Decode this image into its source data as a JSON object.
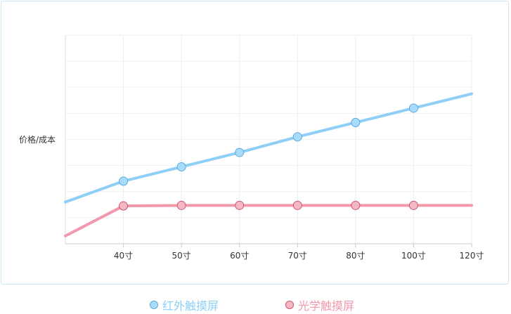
{
  "chart_data": {
    "type": "line",
    "ylabel": "价格/成本",
    "xlabel": "",
    "categories": [
      "",
      "40寸",
      "50寸",
      "60寸",
      "70寸",
      "80寸",
      "100寸",
      "120寸"
    ],
    "x_ticks": [
      "40寸",
      "50寸",
      "60寸",
      "70寸",
      "80寸",
      "100寸",
      "120寸"
    ],
    "ylim": [
      0,
      8
    ],
    "grid": true,
    "legend_position": "bottom",
    "series": [
      {
        "name": "红外触摸屏",
        "color": "#8ecff7",
        "marker_fill": "#a9dcfb",
        "marker_stroke": "#5aa9dc",
        "values": [
          1.6,
          2.4,
          2.95,
          3.5,
          4.1,
          4.65,
          5.2,
          5.75
        ],
        "markers": [
          false,
          true,
          true,
          true,
          true,
          true,
          true,
          false
        ]
      },
      {
        "name": "光学触摸屏",
        "color": "#f199aa",
        "marker_fill": "#f5b8c3",
        "marker_stroke": "#c9546b",
        "values": [
          0.3,
          1.45,
          1.47,
          1.47,
          1.47,
          1.47,
          1.47,
          1.47
        ],
        "markers": [
          false,
          true,
          true,
          true,
          true,
          true,
          true,
          false
        ]
      }
    ]
  }
}
